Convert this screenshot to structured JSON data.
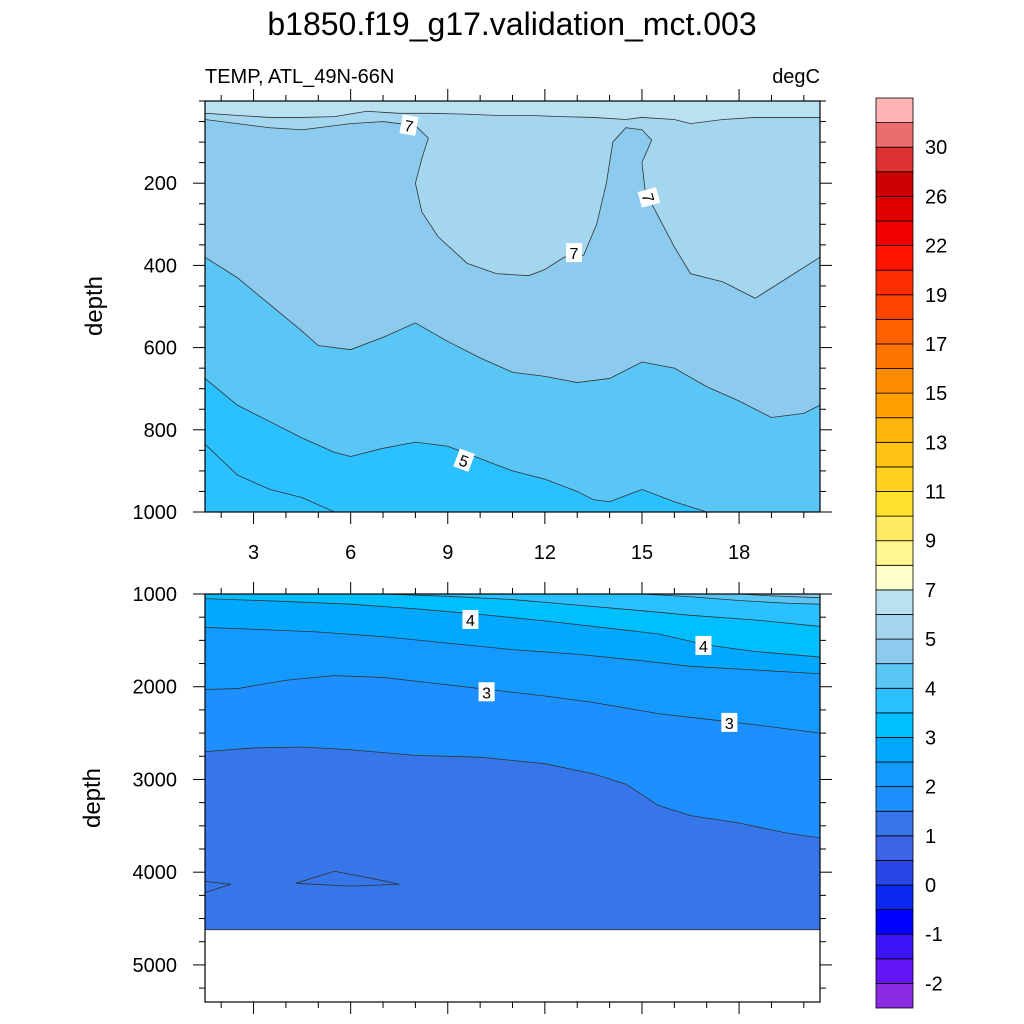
{
  "title": "b1850.f19_g17.validation_mct.003",
  "chart_data": {
    "type": "contour",
    "variable_label": "TEMP, ATL_49N-66N",
    "units": "degC",
    "panels": [
      {
        "id": "upper",
        "ylabel": "depth",
        "ylim": [
          0,
          1000
        ],
        "y_inverted": true,
        "yticks": [
          200,
          400,
          600,
          800,
          1000
        ],
        "xlim": [
          1.5,
          20.5
        ],
        "xticks": [
          3,
          6,
          9,
          12,
          15,
          18
        ],
        "xticklabels": [
          "3",
          "6",
          "9",
          "12",
          "15",
          "18"
        ],
        "fill_bands": [
          {
            "level": "lt4.5",
            "color": "#2bc0ff",
            "upper": [
              [
                1.5,
                835
              ],
              [
                2.5,
                910
              ],
              [
                3.5,
                945
              ],
              [
                4.5,
                965
              ],
              [
                5.5,
                1000
              ],
              [
                20.5,
                1000
              ]
            ]
          },
          {
            "level": "4.5-5",
            "color": "#5ac6f5",
            "upper": [
              [
                1.5,
                675
              ],
              [
                2.5,
                740
              ],
              [
                3.5,
                780
              ],
              [
                4.5,
                820
              ],
              [
                5.5,
                855
              ],
              [
                6.0,
                865
              ],
              [
                7.0,
                845
              ],
              [
                8.0,
                830
              ],
              [
                9.0,
                840
              ],
              [
                10.0,
                870
              ],
              [
                11.0,
                900
              ],
              [
                12.0,
                920
              ],
              [
                13.0,
                950
              ],
              [
                13.5,
                970
              ],
              [
                14.0,
                975
              ],
              [
                15.0,
                945
              ],
              [
                16.0,
                975
              ],
              [
                17.0,
                1000
              ],
              [
                20.5,
                1000
              ]
            ]
          },
          {
            "level": "5-5.5",
            "color": "#8ccbed",
            "upper": [
              [
                1.5,
                380
              ],
              [
                2.5,
                430
              ],
              [
                3.5,
                495
              ],
              [
                4.5,
                560
              ],
              [
                5.0,
                595
              ],
              [
                6.0,
                605
              ],
              [
                7.0,
                575
              ],
              [
                8.0,
                540
              ],
              [
                9.0,
                585
              ],
              [
                10.0,
                625
              ],
              [
                11.0,
                660
              ],
              [
                12.0,
                670
              ],
              [
                13.0,
                685
              ],
              [
                14.0,
                675
              ],
              [
                15.0,
                635
              ],
              [
                16.0,
                650
              ],
              [
                17.0,
                695
              ],
              [
                18.0,
                730
              ],
              [
                19.0,
                770
              ],
              [
                20.0,
                760
              ],
              [
                20.5,
                740
              ]
            ]
          },
          {
            "level": "5.5-7",
            "color": "#a5d6f0",
            "upper": [
              [
                1.5,
                45
              ],
              [
                2.5,
                55
              ],
              [
                3.5,
                65
              ],
              [
                4.5,
                70
              ],
              [
                5.0,
                65
              ],
              [
                6.0,
                55
              ],
              [
                7.0,
                50
              ],
              [
                8.0,
                60
              ],
              [
                8.4,
                90
              ],
              [
                8.2,
                140
              ],
              [
                8.0,
                200
              ],
              [
                8.2,
                270
              ],
              [
                8.7,
                330
              ],
              [
                9.6,
                395
              ],
              [
                10.5,
                420
              ],
              [
                11.5,
                425
              ],
              [
                12.0,
                410
              ],
              [
                12.6,
                380
              ],
              [
                13.2,
                375
              ],
              [
                13.6,
                300
              ],
              [
                13.9,
                200
              ],
              [
                14.1,
                100
              ],
              [
                14.5,
                65
              ],
              [
                15.0,
                70
              ],
              [
                15.3,
                95
              ],
              [
                15.0,
                150
              ],
              [
                15.1,
                220
              ],
              [
                15.5,
                280
              ],
              [
                16.0,
                355
              ],
              [
                16.5,
                420
              ],
              [
                17.5,
                440
              ],
              [
                18.5,
                480
              ],
              [
                19.5,
                430
              ],
              [
                20.5,
                380
              ]
            ]
          },
          {
            "level": "7-7.5",
            "color": "#bae1f2",
            "upper": [
              [
                1.5,
                30
              ],
              [
                2.5,
                35
              ],
              [
                3.5,
                40
              ],
              [
                4.5,
                40
              ],
              [
                5.5,
                38
              ],
              [
                6.5,
                25
              ],
              [
                7.5,
                30
              ],
              [
                8.5,
                30
              ],
              [
                9.5,
                32
              ],
              [
                10.5,
                35
              ],
              [
                11.5,
                35
              ],
              [
                12.5,
                38
              ],
              [
                13.5,
                40
              ],
              [
                14.5,
                45
              ],
              [
                15.0,
                40
              ],
              [
                16.0,
                45
              ],
              [
                16.5,
                55
              ],
              [
                17.5,
                45
              ],
              [
                18.5,
                40
              ],
              [
                19.5,
                40
              ],
              [
                20.5,
                40
              ]
            ]
          },
          {
            "level": "8.5-9",
            "color": "#ffffcc",
            "upper": [
              [
                1.5,
                0
              ],
              [
                20.5,
                0
              ]
            ]
          }
        ],
        "contour_labels": [
          {
            "text": "7",
            "x": 7.8,
            "y": 60,
            "rot": 10
          },
          {
            "text": "7",
            "x": 15.2,
            "y": 235,
            "rot": 75
          },
          {
            "text": "7",
            "x": 12.9,
            "y": 370,
            "rot": 0
          },
          {
            "text": "5",
            "x": 9.5,
            "y": 875,
            "rot": 20
          }
        ]
      },
      {
        "id": "lower",
        "ylabel": "depth",
        "ylim": [
          1000,
          5400
        ],
        "y_inverted": true,
        "yticks": [
          1000,
          2000,
          3000,
          4000,
          5000
        ],
        "xlim": [
          1.5,
          20.5
        ],
        "xticks": [
          3,
          6,
          9,
          12,
          15,
          18
        ],
        "xticklabels": [
          "",
          "",
          "",
          "",
          "",
          ""
        ],
        "data_bottom": 4620,
        "fill_bands": [
          {
            "level": "1.5-2",
            "color": "#3676e8",
            "upper": [
              [
                1.5,
                4100
              ],
              [
                1.5,
                4220
              ],
              [
                2.3,
                4130
              ],
              [
                1.5,
                4100
              ]
            ]
          },
          {
            "level": "1.5-2b",
            "color": "#3676e8",
            "upper": [
              [
                4.3,
                4120
              ],
              [
                5.5,
                3990
              ],
              [
                6.7,
                4070
              ],
              [
                7.5,
                4130
              ],
              [
                6.0,
                4150
              ],
              [
                4.3,
                4120
              ]
            ]
          },
          {
            "level": "2-2.5",
            "color": "#1e8fff",
            "upper": [
              [
                1.5,
                2700
              ],
              [
                3.0,
                2660
              ],
              [
                4.5,
                2650
              ],
              [
                6.0,
                2680
              ],
              [
                8.0,
                2740
              ],
              [
                10.0,
                2760
              ],
              [
                12.0,
                2830
              ],
              [
                13.5,
                2940
              ],
              [
                14.5,
                3050
              ],
              [
                15.5,
                3280
              ],
              [
                16.5,
                3390
              ],
              [
                18.0,
                3470
              ],
              [
                19.5,
                3580
              ],
              [
                20.5,
                3630
              ]
            ]
          },
          {
            "level": "2.5-3",
            "color": "#1499ff",
            "upper": [
              [
                1.5,
                2030
              ],
              [
                2.5,
                2020
              ],
              [
                4.0,
                1930
              ],
              [
                5.5,
                1880
              ],
              [
                7.0,
                1900
              ],
              [
                8.5,
                1960
              ],
              [
                10.0,
                2020
              ],
              [
                12.0,
                2100
              ],
              [
                13.5,
                2170
              ],
              [
                15.5,
                2290
              ],
              [
                17.0,
                2350
              ],
              [
                18.5,
                2410
              ],
              [
                20.5,
                2500
              ]
            ]
          },
          {
            "level": "3-3.5",
            "color": "#00a9ff",
            "upper": [
              [
                1.5,
                1360
              ],
              [
                3.0,
                1380
              ],
              [
                5.0,
                1410
              ],
              [
                7.0,
                1460
              ],
              [
                9.0,
                1530
              ],
              [
                11.0,
                1600
              ],
              [
                13.0,
                1650
              ],
              [
                15.0,
                1720
              ],
              [
                16.5,
                1780
              ],
              [
                18.5,
                1820
              ],
              [
                20.5,
                1860
              ]
            ]
          },
          {
            "level": "3.5-4",
            "color": "#00bfff",
            "upper": [
              [
                1.5,
                1050
              ],
              [
                4.0,
                1080
              ],
              [
                6.0,
                1110
              ],
              [
                8.0,
                1160
              ],
              [
                10.0,
                1220
              ],
              [
                12.0,
                1290
              ],
              [
                14.0,
                1370
              ],
              [
                15.5,
                1430
              ],
              [
                17.0,
                1550
              ],
              [
                18.5,
                1620
              ],
              [
                20.5,
                1680
              ]
            ]
          },
          {
            "level": "4-4.5",
            "color": "#2bc0ff",
            "upper": [
              [
                1.5,
                1000
              ],
              [
                7.0,
                1000
              ],
              [
                9.0,
                1025
              ],
              [
                11.0,
                1060
              ],
              [
                13.0,
                1120
              ],
              [
                15.0,
                1180
              ],
              [
                16.5,
                1230
              ],
              [
                18.5,
                1280
              ],
              [
                20.5,
                1350
              ]
            ]
          },
          {
            "level": "4.5-5",
            "color": "#5ac6f5",
            "upper": [
              [
                1.5,
                1000
              ],
              [
                15.0,
                1000
              ],
              [
                16.5,
                1030
              ],
              [
                18.0,
                1070
              ],
              [
                19.5,
                1100
              ],
              [
                20.5,
                1110
              ]
            ]
          },
          {
            "level": "5-5.5",
            "color": "#8ccbed",
            "upper": [
              [
                1.5,
                1000
              ],
              [
                18.0,
                1000
              ],
              [
                19.0,
                1020
              ],
              [
                20.5,
                1040
              ]
            ]
          }
        ],
        "contour_labels": [
          {
            "text": "4",
            "x": 9.7,
            "y": 1280,
            "rot": 0
          },
          {
            "text": "4",
            "x": 16.9,
            "y": 1560,
            "rot": 0
          },
          {
            "text": "3",
            "x": 10.2,
            "y": 2060,
            "rot": 0
          },
          {
            "text": "3",
            "x": 17.7,
            "y": 2390,
            "rot": 0
          }
        ]
      }
    ],
    "colorbar": {
      "colors": [
        "#8a2be2",
        "#6415f5",
        "#3c14f5",
        "#0000ff",
        "#0c28ee",
        "#2846e6",
        "#3c64e6",
        "#3676e8",
        "#1e8fff",
        "#1499ff",
        "#00a9ff",
        "#00bfff",
        "#2bc0ff",
        "#5ac6f5",
        "#8ccbed",
        "#a5d6f0",
        "#bae1f2",
        "#ffffcc",
        "#fff68f",
        "#ffeb63",
        "#ffe12d",
        "#ffd21f",
        "#ffc414",
        "#ffb60a",
        "#ffa000",
        "#ff8c00",
        "#ff7400",
        "#ff6000",
        "#ff4400",
        "#ff2e00",
        "#ff1400",
        "#f00000",
        "#e00000",
        "#cc0000",
        "#dc3232",
        "#eb6e6e",
        "#ffb3b3"
      ],
      "labels": [
        {
          "text": "-2",
          "index": 1
        },
        {
          "text": "-1",
          "index": 3
        },
        {
          "text": "0",
          "index": 5
        },
        {
          "text": "1",
          "index": 7
        },
        {
          "text": "2",
          "index": 9
        },
        {
          "text": "3",
          "index": 11
        },
        {
          "text": "4",
          "index": 13
        },
        {
          "text": "5",
          "index": 15
        },
        {
          "text": "7",
          "index": 17
        },
        {
          "text": "9",
          "index": 19
        },
        {
          "text": "11",
          "index": 21
        },
        {
          "text": "13",
          "index": 23
        },
        {
          "text": "15",
          "index": 25
        },
        {
          "text": "17",
          "index": 27
        },
        {
          "text": "19",
          "index": 29
        },
        {
          "text": "22",
          "index": 31
        },
        {
          "text": "26",
          "index": 33
        },
        {
          "text": "30",
          "index": 35
        }
      ]
    }
  }
}
